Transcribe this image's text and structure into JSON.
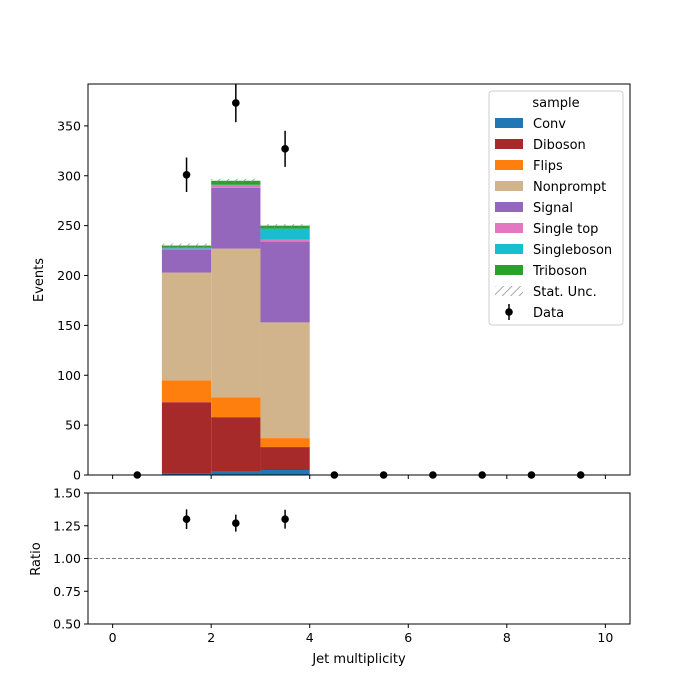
{
  "chart_data": [
    {
      "type": "bar",
      "stacked": true,
      "bin_edges": [
        0,
        1,
        2,
        3,
        4,
        5,
        6,
        7,
        8,
        9,
        10
      ],
      "xlim": [
        -0.5,
        10.5
      ],
      "ylim": [
        0,
        392
      ],
      "ylabel": "Events",
      "y_ticks": [
        "0",
        "50",
        "100",
        "150",
        "200",
        "250",
        "300",
        "350"
      ],
      "x_ticks": [
        "0",
        "2",
        "4",
        "6",
        "8",
        "10"
      ],
      "legend_title": "sample",
      "legend_position": "top-right",
      "series": [
        {
          "name": "Conv",
          "color": "#1f77b4",
          "values": [
            0,
            2,
            4,
            5,
            0,
            0,
            0,
            0,
            0,
            0
          ]
        },
        {
          "name": "Diboson",
          "color": "#a62a2a",
          "values": [
            0,
            71,
            54,
            23,
            0,
            0,
            0,
            0,
            0,
            0
          ]
        },
        {
          "name": "Flips",
          "color": "#ff7f0e",
          "values": [
            0,
            22,
            20,
            9,
            0,
            0,
            0,
            0,
            0,
            0
          ]
        },
        {
          "name": "Nonprompt",
          "color": "#d2b48c",
          "values": [
            0,
            108,
            149,
            116,
            0,
            0,
            0,
            0,
            0,
            0
          ]
        },
        {
          "name": "Signal",
          "color": "#9467bd",
          "values": [
            0,
            23,
            61,
            81,
            0,
            0,
            0,
            0,
            0,
            0
          ]
        },
        {
          "name": "Single top",
          "color": "#e377c2",
          "values": [
            0,
            1,
            2,
            2,
            0,
            0,
            0,
            0,
            0,
            0
          ]
        },
        {
          "name": "Singleboson",
          "color": "#17becf",
          "values": [
            0,
            1,
            1,
            11,
            0,
            0,
            0,
            0,
            0,
            0
          ]
        },
        {
          "name": "Triboson",
          "color": "#2ca02c",
          "values": [
            0,
            2,
            4,
            3,
            0,
            0,
            0,
            0,
            0,
            0
          ]
        }
      ],
      "stat_unc": {
        "name": "Stat. Unc.",
        "values": [
          0,
          2,
          2,
          1.5,
          0,
          0,
          0,
          0,
          0,
          0
        ]
      },
      "data": {
        "name": "Data",
        "x": [
          0.5,
          1.5,
          2.5,
          3.5,
          4.5,
          5.5,
          6.5,
          7.5,
          8.5,
          9.5
        ],
        "y": [
          0,
          301,
          373,
          327,
          0,
          0,
          0,
          0,
          0,
          0
        ],
        "yerr": [
          0,
          17.3,
          19.3,
          18.1,
          0,
          0,
          0,
          0,
          0,
          0
        ]
      }
    },
    {
      "type": "scatter",
      "xlabel": "Jet multiplicity",
      "ylabel": "Ratio",
      "xlim": [
        -0.5,
        10.5
      ],
      "ylim": [
        0.5,
        1.5
      ],
      "y_ticks": [
        "0.50",
        "0.75",
        "1.00",
        "1.25",
        "1.50"
      ],
      "x_ticks": [
        "0",
        "2",
        "4",
        "6",
        "8",
        "10"
      ],
      "reference_line": 1.0,
      "x": [
        1.5,
        2.5,
        3.5
      ],
      "y": [
        1.3,
        1.27,
        1.3
      ],
      "yerr": [
        0.075,
        0.065,
        0.072
      ]
    }
  ]
}
